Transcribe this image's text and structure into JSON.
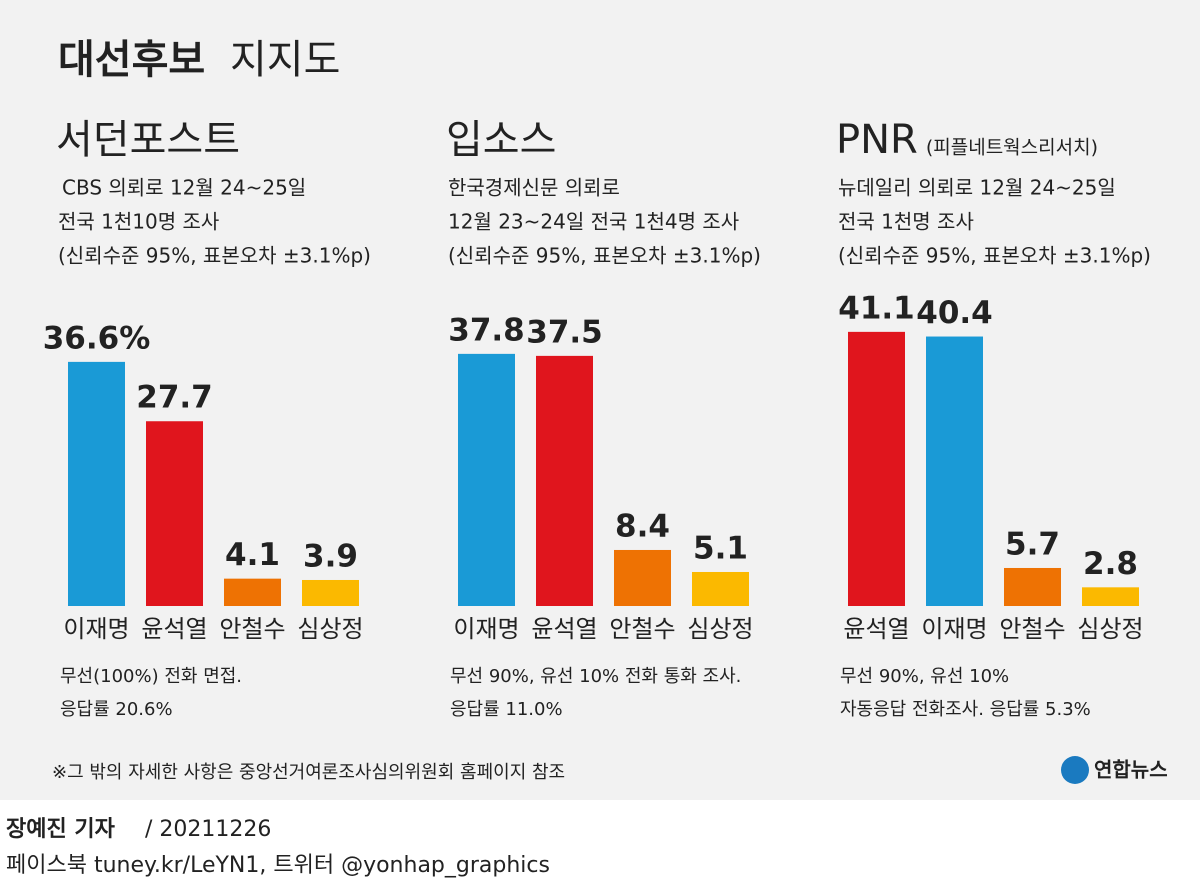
{
  "header": {
    "title_bold": "대선후보",
    "title_light": "지지도"
  },
  "chart_data": [
    {
      "type": "bar",
      "title": "서던포스트",
      "subtitle": [
        "CBS 의뢰로 12월 24~25일",
        "전국 1천10명 조사",
        "(신뢰수준 95%, 표본오차 ±3.1%p)"
      ],
      "categories": [
        "이재명",
        "윤석열",
        "안철수",
        "심상정"
      ],
      "values": [
        36.6,
        27.7,
        4.1,
        3.9
      ],
      "value_labels": [
        "36.6%",
        "27.7",
        "4.1",
        "3.9"
      ],
      "colors": [
        "#1a9ad6",
        "#e0151d",
        "#ee7203",
        "#fbb900"
      ],
      "notes": [
        "무선(100%) 전화 면접.",
        "응답률 20.6%"
      ]
    },
    {
      "type": "bar",
      "title": "입소스",
      "subtitle": [
        "한국경제신문 의뢰로",
        "12월 23~24일 전국 1천4명 조사",
        "(신뢰수준 95%, 표본오차 ±3.1%p)"
      ],
      "categories": [
        "이재명",
        "윤석열",
        "안철수",
        "심상정"
      ],
      "values": [
        37.8,
        37.5,
        8.4,
        5.1
      ],
      "colors": [
        "#1a9ad6",
        "#e0151d",
        "#ee7203",
        "#fbb900"
      ],
      "notes": [
        "무선 90%, 유선 10% 전화 통화 조사.",
        "응답률 11.0%"
      ]
    },
    {
      "type": "bar",
      "title": "PNR",
      "title_note": "(피플네트웍스리서치)",
      "subtitle": [
        "뉴데일리 의뢰로 12월 24~25일",
        "전국 1천명 조사",
        "(신뢰수준 95%, 표본오차 ±3.1%p)"
      ],
      "categories": [
        "윤석열",
        "이재명",
        "안철수",
        "심상정"
      ],
      "values": [
        41.1,
        40.4,
        5.7,
        2.8
      ],
      "colors": [
        "#e0151d",
        "#1a9ad6",
        "#ee7203",
        "#fbb900"
      ],
      "notes": [
        "무선 90%, 유선 10%",
        "자동응답 전화조사. 응답률 5.3%"
      ]
    }
  ],
  "footnote": "※그 밖의 자세한 사항은 중앙선거여론조사심의위원회 홈페이지 참조",
  "logo": "연합뉴스",
  "byline": {
    "name": "장예진 기자",
    "date": "/ 20211226"
  },
  "social": "페이스북 tuney.kr/LeYN1, 트위터 @yonhap_graphics"
}
